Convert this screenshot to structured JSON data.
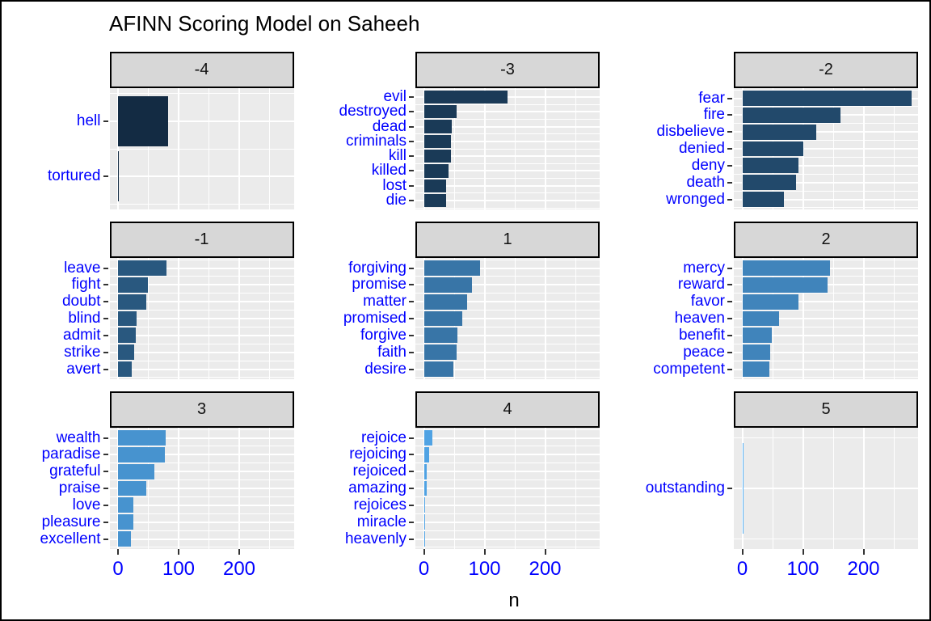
{
  "title": "AFINN Scoring Model on Saheeh",
  "axis": {
    "x_title": "n",
    "x_tick_labels": [
      "0",
      "100",
      "200"
    ]
  },
  "colors": {
    "panel_bg": "#EBEBEB",
    "strip_bg": "#D7D7D7",
    "strip_border": "#000000",
    "gridline": "#FFFFFF",
    "axis_text": "#0000FF",
    "tick_mark": "#333333",
    "gradient_low": "#132B43",
    "gradient_high": "#56B1F7"
  },
  "chart_data": {
    "type": "bar",
    "orientation": "horizontal",
    "title": "AFINN Scoring Model on Saheeh",
    "xlabel": "n",
    "ylabel": "",
    "x_ticks": [
      0,
      100,
      200
    ],
    "xlim": [
      -14,
      290
    ],
    "grid": true,
    "legend": false,
    "facet_variable": "AFINN score",
    "facets": [
      {
        "label": "-4",
        "color": "#132B43",
        "bars": [
          {
            "word": "hell",
            "n": 83
          },
          {
            "word": "tortured",
            "n": 1
          }
        ]
      },
      {
        "label": "-3",
        "color": "#1A3A57",
        "bars": [
          {
            "word": "evil",
            "n": 138
          },
          {
            "word": "destroyed",
            "n": 54
          },
          {
            "word": "dead",
            "n": 46
          },
          {
            "word": "criminals",
            "n": 45
          },
          {
            "word": "kill",
            "n": 44
          },
          {
            "word": "killed",
            "n": 40
          },
          {
            "word": "lost",
            "n": 37
          },
          {
            "word": "die",
            "n": 36
          }
        ]
      },
      {
        "label": "-2",
        "color": "#22496B",
        "bars": [
          {
            "word": "fear",
            "n": 279
          },
          {
            "word": "fire",
            "n": 162
          },
          {
            "word": "disbelieve",
            "n": 122
          },
          {
            "word": "denied",
            "n": 100
          },
          {
            "word": "deny",
            "n": 92
          },
          {
            "word": "death",
            "n": 88
          },
          {
            "word": "wronged",
            "n": 68
          }
        ]
      },
      {
        "label": "-1",
        "color": "#29587F",
        "bars": [
          {
            "word": "leave",
            "n": 80
          },
          {
            "word": "fight",
            "n": 49
          },
          {
            "word": "doubt",
            "n": 46
          },
          {
            "word": "blind",
            "n": 30
          },
          {
            "word": "admit",
            "n": 29
          },
          {
            "word": "strike",
            "n": 26
          },
          {
            "word": "avert",
            "n": 23
          }
        ]
      },
      {
        "label": "1",
        "color": "#3875A7",
        "bars": [
          {
            "word": "forgiving",
            "n": 92
          },
          {
            "word": "promise",
            "n": 79
          },
          {
            "word": "matter",
            "n": 71
          },
          {
            "word": "promised",
            "n": 63
          },
          {
            "word": "forgive",
            "n": 55
          },
          {
            "word": "faith",
            "n": 54
          },
          {
            "word": "desire",
            "n": 48
          }
        ]
      },
      {
        "label": "2",
        "color": "#4084BB",
        "bars": [
          {
            "word": "mercy",
            "n": 145
          },
          {
            "word": "reward",
            "n": 141
          },
          {
            "word": "favor",
            "n": 92
          },
          {
            "word": "heaven",
            "n": 61
          },
          {
            "word": "benefit",
            "n": 49
          },
          {
            "word": "peace",
            "n": 46
          },
          {
            "word": "competent",
            "n": 45
          }
        ]
      },
      {
        "label": "3",
        "color": "#4793CF",
        "bars": [
          {
            "word": "wealth",
            "n": 78
          },
          {
            "word": "paradise",
            "n": 77
          },
          {
            "word": "grateful",
            "n": 60
          },
          {
            "word": "praise",
            "n": 46
          },
          {
            "word": "love",
            "n": 25
          },
          {
            "word": "pleasure",
            "n": 25
          },
          {
            "word": "excellent",
            "n": 21
          }
        ]
      },
      {
        "label": "4",
        "color": "#4FA2E3",
        "bars": [
          {
            "word": "rejoice",
            "n": 14
          },
          {
            "word": "rejoicing",
            "n": 9
          },
          {
            "word": "rejoiced",
            "n": 5
          },
          {
            "word": "amazing",
            "n": 5
          },
          {
            "word": "rejoices",
            "n": 2
          },
          {
            "word": "miracle",
            "n": 2
          },
          {
            "word": "heavenly",
            "n": 2
          }
        ]
      },
      {
        "label": "5",
        "color": "#56B1F7",
        "bars": [
          {
            "word": "outstanding",
            "n": 2
          }
        ]
      }
    ]
  }
}
